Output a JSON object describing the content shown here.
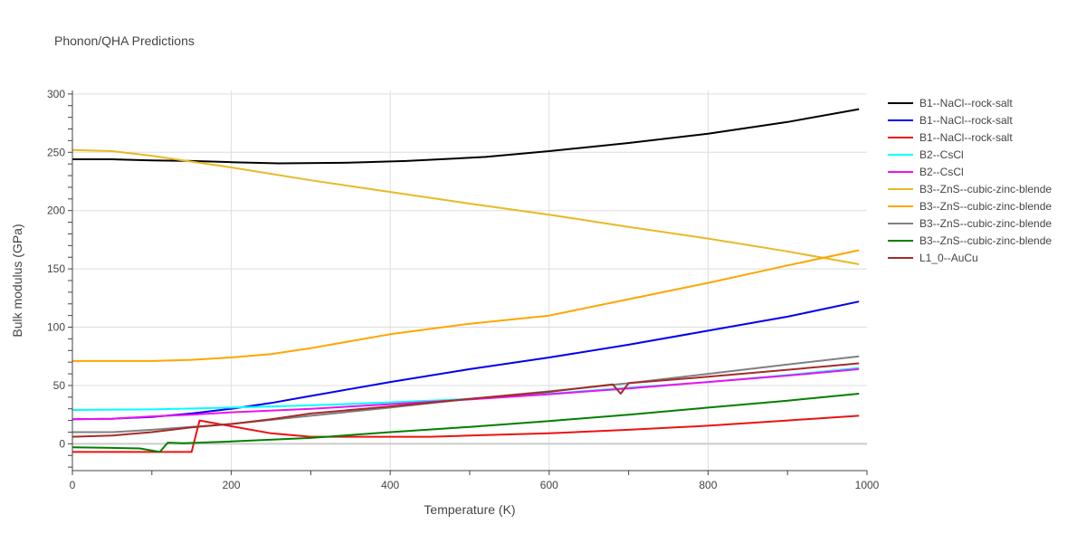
{
  "chart_data": {
    "type": "line",
    "title": "Phonon/QHA Predictions",
    "xlabel": "Temperature (K)",
    "ylabel": "Bulk modulus (GPa)",
    "xlim": [
      0,
      1000
    ],
    "ylim": [
      -23,
      303
    ],
    "xticks": [
      0,
      200,
      400,
      600,
      800,
      1000
    ],
    "yticks": [
      0,
      50,
      100,
      150,
      200,
      250,
      300
    ],
    "grid": true,
    "legend": "right",
    "series": [
      {
        "name": "B1--NaCl--rock-salt",
        "color": "#000000",
        "x": [
          0,
          50,
          100,
          150,
          200,
          260,
          340,
          420,
          520,
          600,
          700,
          800,
          900,
          990
        ],
        "y": [
          244,
          244,
          243,
          242.5,
          241.5,
          240.5,
          241,
          242.5,
          246,
          251,
          258,
          266,
          276,
          287
        ]
      },
      {
        "name": "B1--NaCl--rock-salt",
        "color": "#0000ee",
        "x": [
          0,
          50,
          100,
          150,
          200,
          250,
          300,
          350,
          400,
          500,
          600,
          700,
          800,
          900,
          990
        ],
        "y": [
          21,
          21.5,
          23,
          26,
          30,
          35,
          41,
          47,
          53,
          64,
          74,
          85,
          97,
          109,
          122
        ]
      },
      {
        "name": "B1--NaCl--rock-salt",
        "color": "#ee1111",
        "x": [
          0,
          50,
          100,
          149,
          150,
          160,
          200,
          250,
          300,
          350,
          400,
          450,
          500,
          600,
          700,
          800,
          900,
          990
        ],
        "y": [
          -7,
          -7,
          -7,
          -7,
          -7,
          20,
          15,
          9,
          6,
          6,
          6,
          6,
          7,
          9,
          12,
          15.5,
          20,
          24
        ]
      },
      {
        "name": "B2--CsCl",
        "color": "#00ffff",
        "x": [
          0,
          100,
          200,
          300,
          400,
          500,
          600,
          700,
          800,
          900,
          990
        ],
        "y": [
          29,
          29.5,
          31,
          33,
          35.5,
          38.5,
          43,
          48,
          53,
          59,
          65
        ]
      },
      {
        "name": "B2--CsCl",
        "color": "#ee11ee",
        "x": [
          0,
          50,
          100,
          150,
          200,
          300,
          400,
          500,
          600,
          700,
          800,
          900,
          990
        ],
        "y": [
          21,
          21.5,
          23.5,
          25,
          27,
          30,
          34,
          38,
          42.5,
          47.5,
          53,
          58.5,
          64
        ]
      },
      {
        "name": "B3--ZnS--cubic-zinc-blende",
        "color": "#e8b923",
        "x": [
          0,
          50,
          100,
          150,
          200,
          300,
          400,
          500,
          600,
          700,
          800,
          900,
          990
        ],
        "y": [
          252,
          251,
          247,
          242,
          237,
          226,
          216,
          206,
          196.5,
          186,
          176,
          165,
          154
        ]
      },
      {
        "name": "B3--ZnS--cubic-zinc-blende",
        "color": "#ffa500",
        "x": [
          0,
          50,
          100,
          150,
          200,
          250,
          300,
          350,
          400,
          500,
          600,
          700,
          800,
          900,
          990
        ],
        "y": [
          71,
          71,
          71,
          72,
          74,
          77,
          82,
          88,
          94,
          103,
          110,
          124,
          138,
          153,
          166
        ]
      },
      {
        "name": "B3--ZnS--cubic-zinc-blende",
        "color": "#808080",
        "x": [
          0,
          50,
          100,
          200,
          300,
          400,
          500,
          600,
          700,
          800,
          900,
          990
        ],
        "y": [
          10,
          10,
          12,
          17,
          24,
          31,
          38.5,
          45,
          52,
          60,
          68,
          75
        ]
      },
      {
        "name": "B3--ZnS--cubic-zinc-blende",
        "color": "#008000",
        "x": [
          0,
          50,
          85,
          110,
          120,
          140,
          200,
          300,
          400,
          500,
          600,
          700,
          800,
          900,
          990
        ],
        "y": [
          -3,
          -3.5,
          -4,
          -7,
          1,
          0.5,
          2,
          5,
          10,
          14.5,
          19.5,
          25,
          31,
          37,
          43
        ]
      },
      {
        "name": "L1_0--AuCu",
        "color": "#a52a2a",
        "x": [
          0,
          50,
          100,
          150,
          200,
          250,
          300,
          400,
          500,
          600,
          680,
          690,
          700,
          800,
          900,
          990
        ],
        "y": [
          6,
          7,
          10,
          14,
          17,
          21,
          26,
          32,
          38.5,
          44.5,
          51,
          43,
          52,
          57.5,
          63.5,
          69
        ]
      }
    ]
  }
}
